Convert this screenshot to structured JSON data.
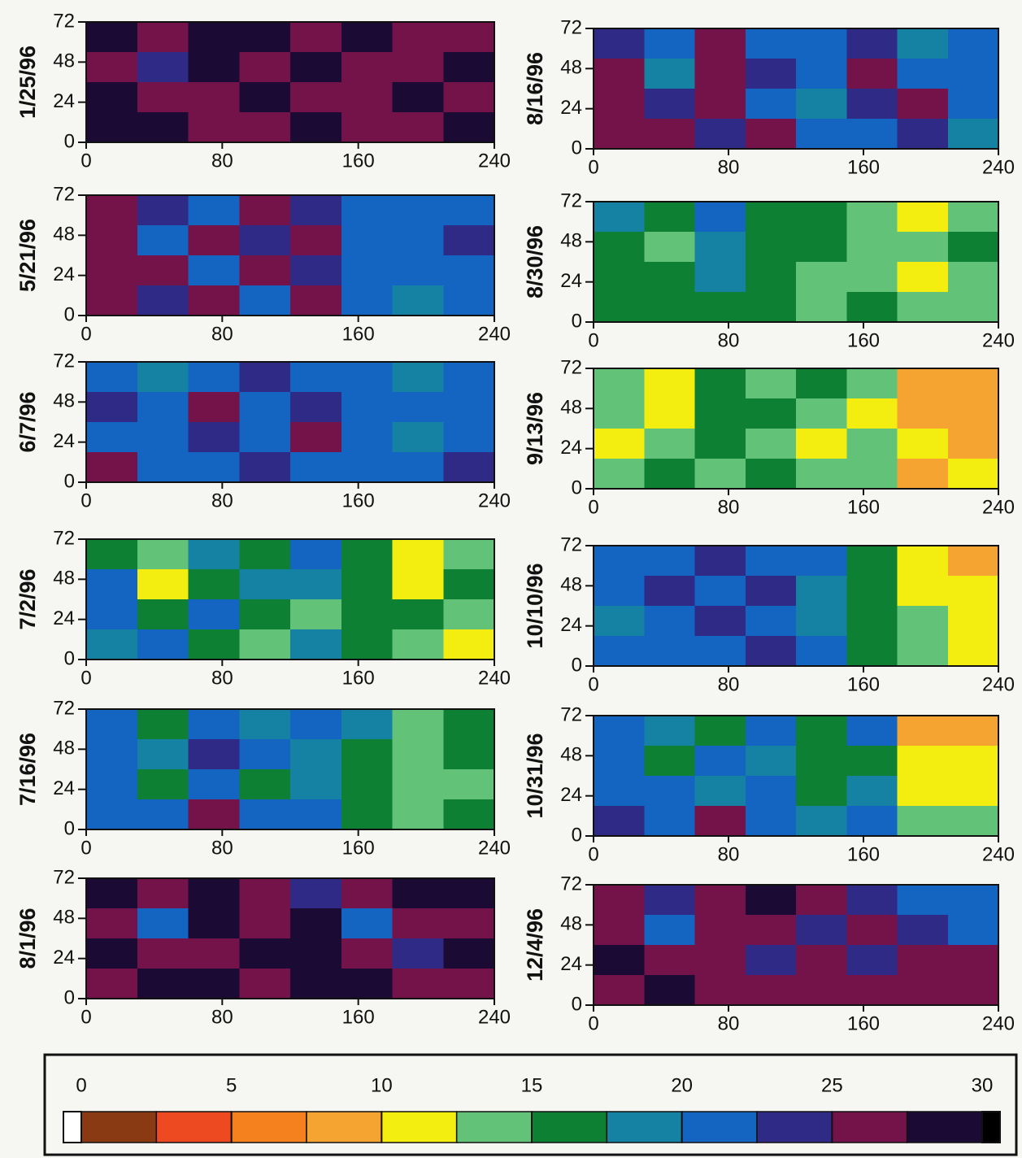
{
  "chart_data": [
    {
      "type": "heatmap",
      "title": "1/25/96",
      "xlim": [
        0,
        240
      ],
      "ylim": [
        0,
        72
      ],
      "xticks": [
        0,
        80,
        160,
        240
      ],
      "yticks": [
        0,
        24,
        48,
        72
      ],
      "z": [
        [
          28,
          26,
          28,
          28,
          26,
          28,
          26,
          26
        ],
        [
          26,
          23,
          28,
          26,
          28,
          26,
          26,
          28
        ],
        [
          28,
          26,
          26,
          28,
          26,
          26,
          28,
          26
        ],
        [
          28,
          28,
          26,
          26,
          28,
          26,
          26,
          28
        ]
      ]
    },
    {
      "type": "heatmap",
      "title": "5/21/96",
      "xlim": [
        0,
        240
      ],
      "ylim": [
        0,
        72
      ],
      "xticks": [
        0,
        80,
        160,
        240
      ],
      "yticks": [
        0,
        24,
        48,
        72
      ],
      "z": [
        [
          26,
          23,
          21,
          26,
          23,
          21,
          21,
          21
        ],
        [
          26,
          21,
          26,
          23,
          26,
          21,
          21,
          23
        ],
        [
          26,
          26,
          21,
          26,
          23,
          21,
          21,
          21
        ],
        [
          26,
          23,
          26,
          21,
          26,
          21,
          18,
          21
        ]
      ]
    },
    {
      "type": "heatmap",
      "title": "6/7/96",
      "xlim": [
        0,
        240
      ],
      "ylim": [
        0,
        72
      ],
      "xticks": [
        0,
        80,
        160,
        240
      ],
      "yticks": [
        0,
        24,
        48,
        72
      ],
      "z": [
        [
          21,
          18,
          21,
          23,
          21,
          21,
          18,
          21
        ],
        [
          23,
          21,
          26,
          21,
          23,
          21,
          21,
          21
        ],
        [
          21,
          21,
          23,
          21,
          26,
          21,
          18,
          21
        ],
        [
          26,
          21,
          21,
          23,
          21,
          21,
          21,
          23
        ]
      ]
    },
    {
      "type": "heatmap",
      "title": "7/2/96",
      "xlim": [
        0,
        240
      ],
      "ylim": [
        0,
        72
      ],
      "xticks": [
        0,
        80,
        160,
        240
      ],
      "yticks": [
        0,
        24,
        48,
        72
      ],
      "z": [
        [
          16,
          13,
          18,
          16,
          21,
          16,
          11,
          13
        ],
        [
          21,
          11,
          16,
          18,
          18,
          16,
          11,
          16
        ],
        [
          21,
          16,
          21,
          16,
          13,
          16,
          16,
          13
        ],
        [
          18,
          21,
          16,
          13,
          18,
          16,
          13,
          11
        ]
      ]
    },
    {
      "type": "heatmap",
      "title": "7/16/96",
      "xlim": [
        0,
        240
      ],
      "ylim": [
        0,
        72
      ],
      "xticks": [
        0,
        80,
        160,
        240
      ],
      "yticks": [
        0,
        24,
        48,
        72
      ],
      "z": [
        [
          21,
          16,
          21,
          18,
          21,
          18,
          13,
          16
        ],
        [
          21,
          18,
          23,
          21,
          18,
          16,
          13,
          16
        ],
        [
          21,
          16,
          21,
          16,
          18,
          16,
          13,
          13
        ],
        [
          21,
          21,
          26,
          21,
          21,
          16,
          13,
          16
        ]
      ]
    },
    {
      "type": "heatmap",
      "title": "8/1/96",
      "xlim": [
        0,
        240
      ],
      "ylim": [
        0,
        72
      ],
      "xticks": [
        0,
        80,
        160,
        240
      ],
      "yticks": [
        0,
        24,
        48,
        72
      ],
      "z": [
        [
          28,
          26,
          28,
          26,
          23,
          26,
          28,
          28
        ],
        [
          26,
          21,
          28,
          26,
          28,
          21,
          26,
          26
        ],
        [
          28,
          26,
          26,
          28,
          28,
          26,
          23,
          28
        ],
        [
          26,
          28,
          28,
          26,
          28,
          28,
          26,
          26
        ]
      ]
    },
    {
      "type": "heatmap",
      "title": "8/16/96",
      "xlim": [
        0,
        240
      ],
      "ylim": [
        0,
        72
      ],
      "xticks": [
        0,
        80,
        160,
        240
      ],
      "yticks": [
        0,
        24,
        48,
        72
      ],
      "z": [
        [
          23,
          21,
          26,
          21,
          21,
          23,
          18,
          21
        ],
        [
          26,
          18,
          26,
          23,
          21,
          26,
          21,
          21
        ],
        [
          26,
          23,
          26,
          21,
          18,
          23,
          26,
          21
        ],
        [
          26,
          26,
          23,
          26,
          21,
          21,
          23,
          18
        ]
      ]
    },
    {
      "type": "heatmap",
      "title": "8/30/96",
      "xlim": [
        0,
        240
      ],
      "ylim": [
        0,
        72
      ],
      "xticks": [
        0,
        80,
        160,
        240
      ],
      "yticks": [
        0,
        24,
        48,
        72
      ],
      "z": [
        [
          18,
          16,
          21,
          16,
          16,
          13,
          11,
          13
        ],
        [
          16,
          13,
          18,
          16,
          16,
          13,
          13,
          16
        ],
        [
          16,
          16,
          18,
          16,
          13,
          13,
          11,
          13
        ],
        [
          16,
          16,
          16,
          16,
          13,
          16,
          13,
          13
        ]
      ]
    },
    {
      "type": "heatmap",
      "title": "9/13/96",
      "xlim": [
        0,
        240
      ],
      "ylim": [
        0,
        72
      ],
      "xticks": [
        0,
        80,
        160,
        240
      ],
      "yticks": [
        0,
        24,
        48,
        72
      ],
      "z": [
        [
          13,
          11,
          16,
          13,
          16,
          13,
          8,
          8
        ],
        [
          13,
          11,
          16,
          16,
          13,
          11,
          8,
          8
        ],
        [
          11,
          13,
          16,
          13,
          11,
          13,
          11,
          8
        ],
        [
          13,
          16,
          13,
          16,
          13,
          13,
          8,
          11
        ]
      ]
    },
    {
      "type": "heatmap",
      "title": "10/10/96",
      "xlim": [
        0,
        240
      ],
      "ylim": [
        0,
        72
      ],
      "xticks": [
        0,
        80,
        160,
        240
      ],
      "yticks": [
        0,
        24,
        48,
        72
      ],
      "z": [
        [
          21,
          21,
          23,
          21,
          21,
          16,
          11,
          8
        ],
        [
          21,
          23,
          21,
          23,
          18,
          16,
          11,
          11
        ],
        [
          18,
          21,
          23,
          21,
          18,
          16,
          13,
          11
        ],
        [
          21,
          21,
          21,
          23,
          21,
          16,
          13,
          11
        ]
      ]
    },
    {
      "type": "heatmap",
      "title": "10/31/96",
      "xlim": [
        0,
        240
      ],
      "ylim": [
        0,
        72
      ],
      "xticks": [
        0,
        80,
        160,
        240
      ],
      "yticks": [
        0,
        24,
        48,
        72
      ],
      "z": [
        [
          21,
          18,
          16,
          21,
          16,
          21,
          8,
          8
        ],
        [
          21,
          16,
          21,
          18,
          16,
          16,
          11,
          11
        ],
        [
          21,
          21,
          18,
          21,
          16,
          18,
          11,
          11
        ],
        [
          23,
          21,
          26,
          21,
          18,
          21,
          13,
          13
        ]
      ]
    },
    {
      "type": "heatmap",
      "title": "12/4/96",
      "xlim": [
        0,
        240
      ],
      "ylim": [
        0,
        72
      ],
      "xticks": [
        0,
        80,
        160,
        240
      ],
      "yticks": [
        0,
        24,
        48,
        72
      ],
      "z": [
        [
          26,
          23,
          26,
          28,
          26,
          23,
          21,
          21
        ],
        [
          26,
          21,
          26,
          26,
          23,
          26,
          23,
          21
        ],
        [
          28,
          26,
          26,
          23,
          26,
          23,
          26,
          26
        ],
        [
          26,
          28,
          26,
          26,
          26,
          26,
          26,
          26
        ]
      ]
    },
    {
      "type": "colorbar",
      "xlim": [
        0,
        30
      ],
      "ticks": [
        0,
        5,
        10,
        15,
        20,
        25,
        30
      ],
      "bins": [
        0,
        2.5,
        5,
        7.5,
        10,
        12.5,
        15,
        17.5,
        20,
        22.5,
        25,
        27.5,
        30
      ],
      "colors": [
        "#8a3a12",
        "#ee4a22",
        "#f5801e",
        "#f5a432",
        "#f4ee10",
        "#62c278",
        "#0e8034",
        "#1582a4",
        "#1464c2",
        "#2e2a86",
        "#74124a",
        "#1a0a34"
      ]
    }
  ]
}
